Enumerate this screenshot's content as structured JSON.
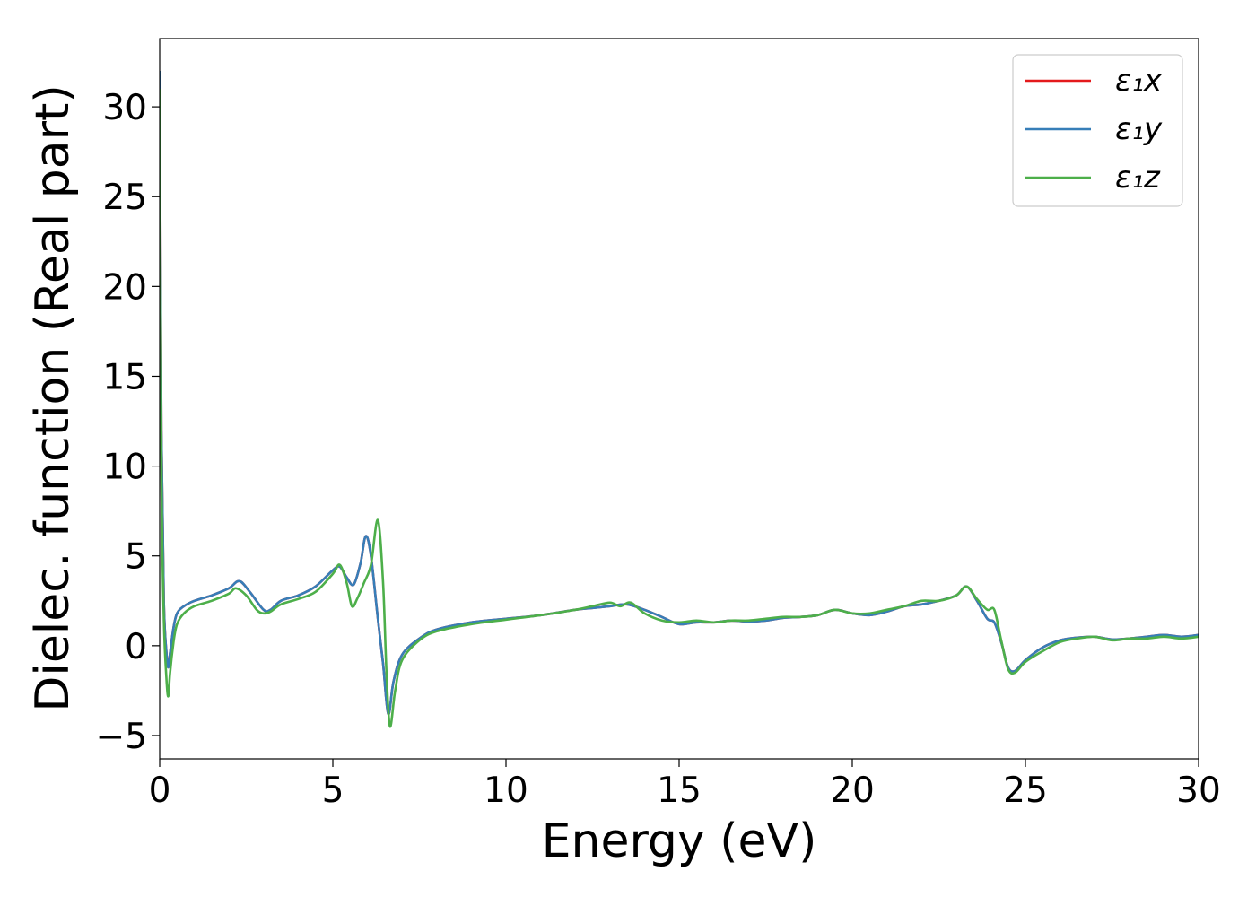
{
  "chart_data": {
    "type": "line",
    "title": "",
    "xlabel": "Energy (eV)",
    "ylabel": "Dielec. function (Real part)",
    "xlim": [
      0,
      30
    ],
    "ylim": [
      -6.3,
      33.8
    ],
    "xticks": [
      0,
      5,
      10,
      15,
      20,
      25,
      30
    ],
    "yticks": [
      -5,
      0,
      5,
      10,
      15,
      20,
      25,
      30
    ],
    "xtick_labels": [
      "0",
      "5",
      "10",
      "15",
      "20",
      "25",
      "30"
    ],
    "ytick_labels": [
      "−5",
      "0",
      "5",
      "10",
      "15",
      "20",
      "25",
      "30"
    ],
    "grid": false,
    "legend_position": "top-right",
    "series": [
      {
        "name": "ε₁x",
        "color": "#e41a1c",
        "x": [
          0.0,
          0.05,
          0.12,
          0.2,
          0.25,
          0.3,
          0.4,
          0.5,
          0.7,
          1.0,
          1.5,
          2.0,
          2.3,
          2.6,
          3.0,
          3.2,
          3.5,
          4.0,
          4.5,
          5.0,
          5.2,
          5.4,
          5.6,
          5.8,
          5.95,
          6.1,
          6.3,
          6.45,
          6.6,
          6.75,
          7.0,
          7.5,
          8.0,
          9.0,
          10.0,
          11.0,
          12.0,
          12.5,
          13.0,
          13.5,
          14.0,
          14.5,
          15.0,
          15.5,
          16.0,
          16.5,
          17.0,
          17.5,
          18.0,
          18.5,
          19.0,
          19.5,
          20.0,
          20.5,
          21.0,
          21.5,
          22.0,
          22.5,
          23.0,
          23.3,
          23.6,
          23.9,
          24.1,
          24.3,
          24.5,
          24.7,
          25.0,
          25.5,
          26.0,
          26.5,
          27.0,
          27.5,
          28.0,
          28.5,
          29.0,
          29.5,
          30.0
        ],
        "y": [
          32.0,
          12.0,
          2.5,
          -0.5,
          -1.2,
          -0.4,
          1.0,
          1.8,
          2.2,
          2.5,
          2.8,
          3.2,
          3.6,
          3.0,
          2.0,
          2.0,
          2.5,
          2.8,
          3.3,
          4.2,
          4.4,
          3.8,
          3.4,
          4.6,
          6.1,
          5.0,
          1.5,
          -1.0,
          -3.8,
          -2.0,
          -0.5,
          0.4,
          0.9,
          1.3,
          1.5,
          1.7,
          2.0,
          2.1,
          2.2,
          2.3,
          2.0,
          1.6,
          1.2,
          1.3,
          1.3,
          1.4,
          1.35,
          1.4,
          1.55,
          1.6,
          1.7,
          2.0,
          1.8,
          1.7,
          1.9,
          2.2,
          2.3,
          2.5,
          2.8,
          3.3,
          2.5,
          1.5,
          1.3,
          0.2,
          -1.2,
          -1.4,
          -0.8,
          -0.1,
          0.3,
          0.45,
          0.5,
          0.35,
          0.4,
          0.5,
          0.6,
          0.5,
          0.6
        ]
      },
      {
        "name": "ε₁y",
        "color": "#377eb8",
        "x": [
          0.0,
          0.05,
          0.12,
          0.2,
          0.25,
          0.3,
          0.4,
          0.5,
          0.7,
          1.0,
          1.5,
          2.0,
          2.3,
          2.6,
          3.0,
          3.2,
          3.5,
          4.0,
          4.5,
          5.0,
          5.2,
          5.4,
          5.6,
          5.8,
          5.95,
          6.1,
          6.3,
          6.45,
          6.6,
          6.75,
          7.0,
          7.5,
          8.0,
          9.0,
          10.0,
          11.0,
          12.0,
          12.5,
          13.0,
          13.5,
          14.0,
          14.5,
          15.0,
          15.5,
          16.0,
          16.5,
          17.0,
          17.5,
          18.0,
          18.5,
          19.0,
          19.5,
          20.0,
          20.5,
          21.0,
          21.5,
          22.0,
          22.5,
          23.0,
          23.3,
          23.6,
          23.9,
          24.1,
          24.3,
          24.5,
          24.7,
          25.0,
          25.5,
          26.0,
          26.5,
          27.0,
          27.5,
          28.0,
          28.5,
          29.0,
          29.5,
          30.0
        ],
        "y": [
          32.0,
          12.0,
          2.5,
          -0.5,
          -1.2,
          -0.4,
          1.0,
          1.8,
          2.2,
          2.5,
          2.8,
          3.2,
          3.6,
          3.0,
          2.0,
          2.0,
          2.5,
          2.8,
          3.3,
          4.2,
          4.4,
          3.8,
          3.4,
          4.6,
          6.1,
          5.0,
          1.5,
          -1.0,
          -3.8,
          -2.0,
          -0.5,
          0.4,
          0.9,
          1.3,
          1.5,
          1.7,
          2.0,
          2.1,
          2.2,
          2.3,
          2.0,
          1.6,
          1.2,
          1.3,
          1.3,
          1.4,
          1.35,
          1.4,
          1.55,
          1.6,
          1.7,
          2.0,
          1.8,
          1.7,
          1.9,
          2.2,
          2.3,
          2.5,
          2.8,
          3.3,
          2.5,
          1.5,
          1.3,
          0.2,
          -1.2,
          -1.4,
          -0.8,
          -0.1,
          0.3,
          0.45,
          0.5,
          0.35,
          0.4,
          0.5,
          0.6,
          0.5,
          0.6
        ]
      },
      {
        "name": "ε₁z",
        "color": "#4daf4a",
        "x": [
          0.0,
          0.05,
          0.12,
          0.2,
          0.25,
          0.3,
          0.4,
          0.5,
          0.7,
          1.0,
          1.5,
          2.0,
          2.2,
          2.5,
          2.8,
          3.0,
          3.2,
          3.5,
          4.0,
          4.5,
          5.0,
          5.2,
          5.4,
          5.55,
          5.7,
          5.9,
          6.1,
          6.3,
          6.45,
          6.55,
          6.65,
          6.8,
          7.0,
          7.5,
          8.0,
          9.0,
          10.0,
          11.0,
          12.0,
          12.5,
          13.0,
          13.3,
          13.6,
          14.0,
          14.5,
          15.0,
          15.5,
          16.0,
          16.5,
          17.0,
          17.5,
          18.0,
          18.5,
          19.0,
          19.5,
          20.0,
          20.5,
          21.0,
          21.5,
          22.0,
          22.5,
          23.0,
          23.3,
          23.6,
          23.9,
          24.1,
          24.3,
          24.5,
          24.7,
          25.0,
          25.5,
          26.0,
          26.5,
          27.0,
          27.5,
          28.0,
          28.5,
          29.0,
          29.5,
          30.0
        ],
        "y": [
          31.0,
          10.0,
          1.5,
          -2.0,
          -2.8,
          -1.5,
          0.2,
          1.2,
          1.8,
          2.2,
          2.5,
          2.9,
          3.2,
          2.8,
          2.0,
          1.8,
          1.9,
          2.3,
          2.6,
          3.0,
          4.0,
          4.5,
          3.5,
          2.2,
          2.6,
          3.5,
          4.5,
          7.0,
          3.5,
          -1.5,
          -4.5,
          -2.5,
          -0.8,
          0.3,
          0.8,
          1.2,
          1.45,
          1.7,
          2.0,
          2.2,
          2.4,
          2.2,
          2.4,
          1.8,
          1.4,
          1.3,
          1.4,
          1.3,
          1.4,
          1.4,
          1.5,
          1.6,
          1.6,
          1.7,
          2.0,
          1.8,
          1.8,
          2.0,
          2.2,
          2.5,
          2.5,
          2.8,
          3.3,
          2.6,
          2.0,
          2.0,
          0.3,
          -1.3,
          -1.5,
          -0.9,
          -0.3,
          0.2,
          0.4,
          0.5,
          0.3,
          0.4,
          0.4,
          0.5,
          0.4,
          0.5
        ]
      }
    ]
  }
}
